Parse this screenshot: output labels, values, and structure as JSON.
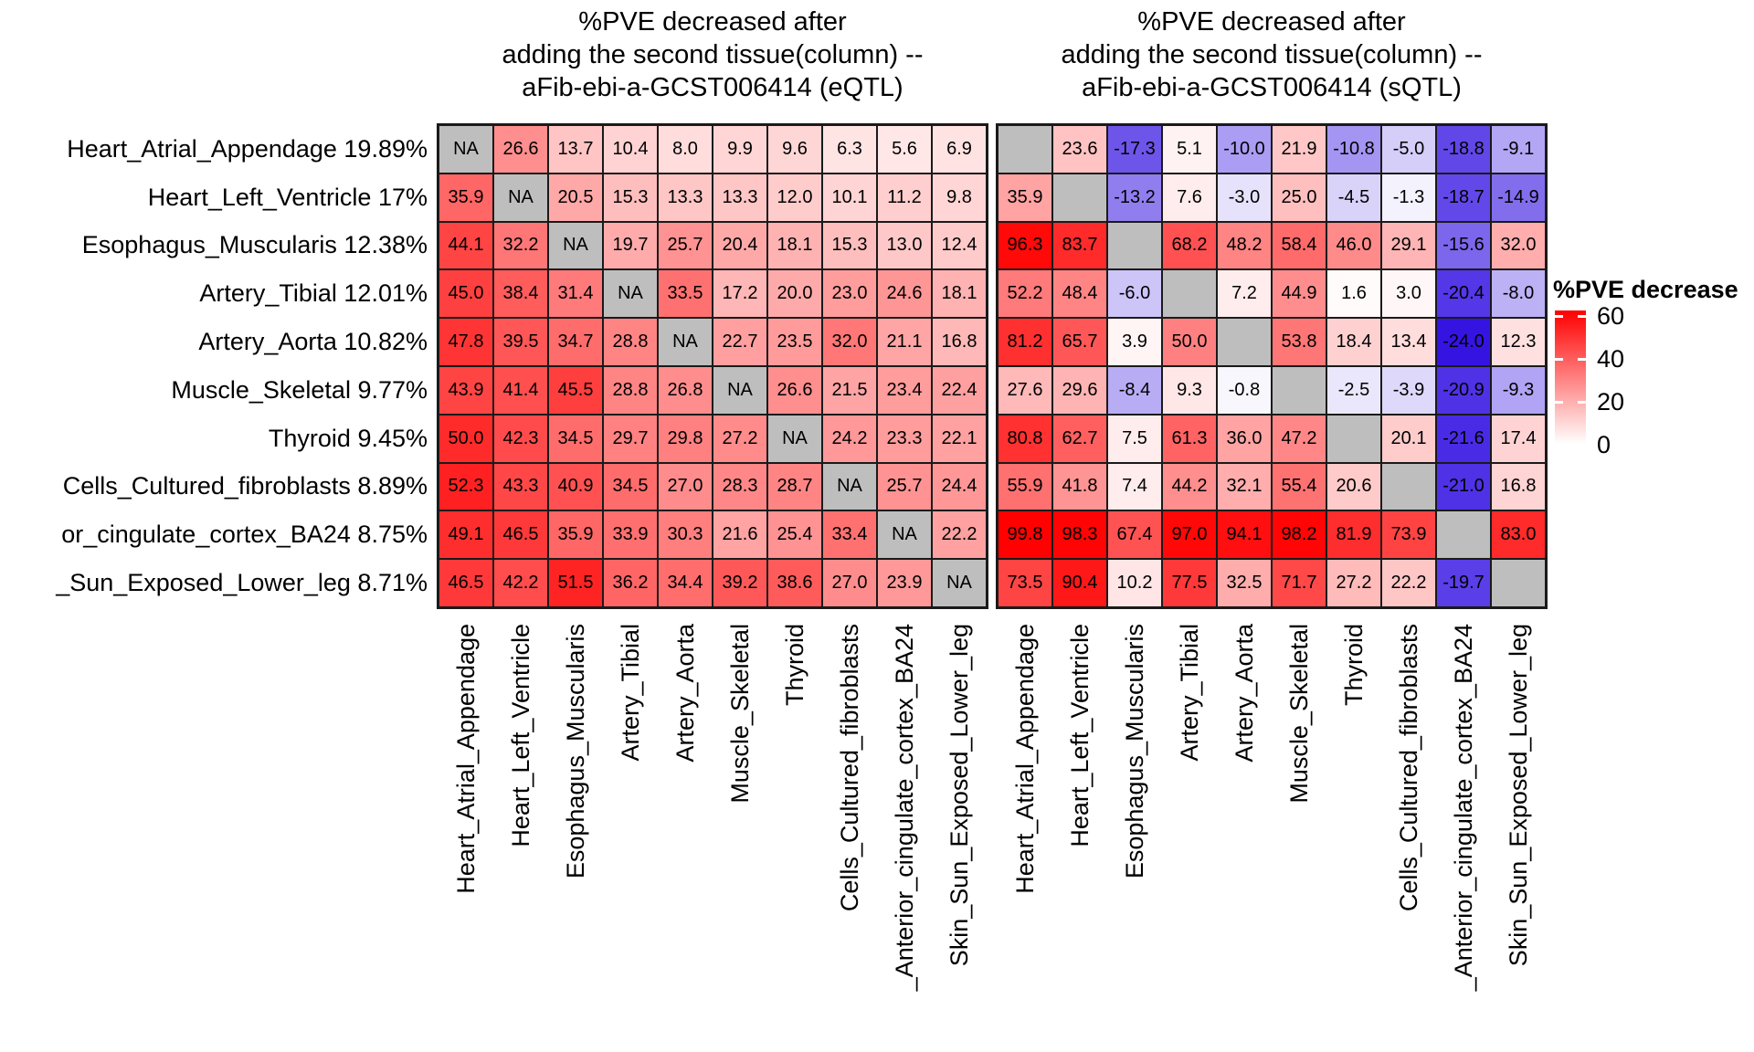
{
  "legend": {
    "title": "%PVE decrease",
    "ticks": [
      "60",
      "40",
      "20",
      "0"
    ]
  },
  "colors": {
    "na_cell": "#BEBEBE",
    "grid_border": "#1A1A1A",
    "positive_end": "#FF0000",
    "negative_end": "#2D0AE1",
    "zero": "#FFFFFF"
  },
  "chart_data": [
    {
      "type": "heatmap",
      "name": "eQTL",
      "title": "%PVE decreased after\nadding the second tissue(column) --\naFib-ebi-a-GCST006414 (eQTL)",
      "row_labels": [
        "Heart_Atrial_Appendage 19.89%",
        "Heart_Left_Ventricle 17%",
        "Esophagus_Muscularis 12.38%",
        "Artery_Tibial 12.01%",
        "Artery_Aorta 10.82%",
        "Muscle_Skeletal 9.77%",
        "Thyroid 9.45%",
        "Cells_Cultured_fibroblasts 8.89%",
        "or_cingulate_cortex_BA24 8.75%",
        "_Sun_Exposed_Lower_leg 8.71%"
      ],
      "col_labels": [
        "Heart_Atrial_Appendage",
        "Heart_Left_Ventricle",
        "Esophagus_Muscularis",
        "Artery_Tibial",
        "Artery_Aorta",
        "Muscle_Skeletal",
        "Thyroid",
        "Cells_Cultured_fibroblasts",
        "_Anterior_cingulate_cortex_BA24",
        "Skin_Sun_Exposed_Lower_leg"
      ],
      "na_label": "NA",
      "scale": {
        "pos_max": 60,
        "neg_max": 25
      },
      "values": [
        [
          null,
          26.6,
          13.7,
          10.4,
          8.0,
          9.9,
          9.6,
          6.3,
          5.6,
          6.9
        ],
        [
          35.9,
          null,
          20.5,
          15.3,
          13.3,
          13.3,
          12.0,
          10.1,
          11.2,
          9.8
        ],
        [
          44.1,
          32.2,
          null,
          19.7,
          25.7,
          20.4,
          18.1,
          15.3,
          13.0,
          12.4
        ],
        [
          45.0,
          38.4,
          31.4,
          null,
          33.5,
          17.2,
          20.0,
          23.0,
          24.6,
          18.1
        ],
        [
          47.8,
          39.5,
          34.7,
          28.8,
          null,
          22.7,
          23.5,
          32.0,
          21.1,
          16.8
        ],
        [
          43.9,
          41.4,
          45.5,
          28.8,
          26.8,
          null,
          26.6,
          21.5,
          23.4,
          22.4
        ],
        [
          50.0,
          42.3,
          34.5,
          29.7,
          29.8,
          27.2,
          null,
          24.2,
          23.3,
          22.1
        ],
        [
          52.3,
          43.3,
          40.9,
          34.5,
          27.0,
          28.3,
          28.7,
          null,
          25.7,
          24.4
        ],
        [
          49.1,
          46.5,
          35.9,
          33.9,
          30.3,
          21.6,
          25.4,
          33.4,
          null,
          22.2
        ],
        [
          46.5,
          42.2,
          51.5,
          36.2,
          34.4,
          39.2,
          38.6,
          27.0,
          23.9,
          null
        ]
      ]
    },
    {
      "type": "heatmap",
      "name": "sQTL",
      "title": "%PVE decreased after\nadding the second tissue(column) --\naFib-ebi-a-GCST006414 (sQTL)",
      "row_labels": [],
      "col_labels": [
        "Heart_Atrial_Appendage",
        "Heart_Left_Ventricle",
        "Esophagus_Muscularis",
        "Artery_Tibial",
        "Artery_Aorta",
        "Muscle_Skeletal",
        "Thyroid",
        "Cells_Cultured_fibroblasts",
        "_Anterior_cingulate_cortex_BA24",
        "Skin_Sun_Exposed_Lower_leg"
      ],
      "na_label": "",
      "scale": {
        "pos_max": 100,
        "neg_max": 25
      },
      "values": [
        [
          null,
          23.6,
          -17.3,
          5.1,
          -10.0,
          21.9,
          -10.8,
          -5.0,
          -18.8,
          -9.1
        ],
        [
          35.9,
          null,
          -13.2,
          7.6,
          -3.0,
          25.0,
          -4.5,
          -1.3,
          -18.7,
          -14.9
        ],
        [
          96.3,
          83.7,
          null,
          68.2,
          48.2,
          58.4,
          46.0,
          29.1,
          -15.6,
          32.0
        ],
        [
          52.2,
          48.4,
          -6.0,
          null,
          7.2,
          44.9,
          1.6,
          3.0,
          -20.4,
          -8.0
        ],
        [
          81.2,
          65.7,
          3.9,
          50.0,
          null,
          53.8,
          18.4,
          13.4,
          -24.0,
          12.3
        ],
        [
          27.6,
          29.6,
          -8.4,
          9.3,
          -0.8,
          null,
          -2.5,
          -3.9,
          -20.9,
          -9.3
        ],
        [
          80.8,
          62.7,
          7.5,
          61.3,
          36.0,
          47.2,
          null,
          20.1,
          -21.6,
          17.4
        ],
        [
          55.9,
          41.8,
          7.4,
          44.2,
          32.1,
          55.4,
          20.6,
          null,
          -21.0,
          16.8
        ],
        [
          99.8,
          98.3,
          67.4,
          97.0,
          94.1,
          98.2,
          81.9,
          73.9,
          null,
          83.0
        ],
        [
          73.5,
          90.4,
          10.2,
          77.5,
          32.5,
          71.7,
          27.2,
          22.2,
          -19.7,
          null
        ]
      ]
    }
  ]
}
